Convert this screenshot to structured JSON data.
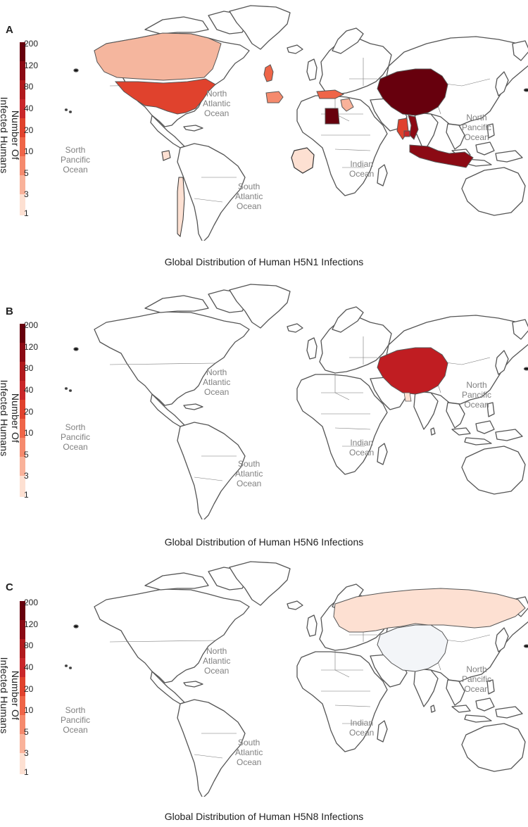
{
  "legend": {
    "title": "Number Of Infected Humans",
    "ticks": [
      "200",
      "120",
      "80",
      "40",
      "20",
      "10",
      "5",
      "3",
      "1"
    ],
    "colors": [
      "#67000d",
      "#8b0a14",
      "#b11a1d",
      "#c9272a",
      "#e0422d",
      "#ef6548",
      "#f58a6d",
      "#f9b29a",
      "#fde0d2"
    ]
  },
  "oceans": {
    "north_atlantic": [
      "North",
      "Atlantic",
      "Ocean"
    ],
    "south_pacific": [
      "Sorth",
      "Pancific",
      "Ocean"
    ],
    "south_atlantic": [
      "South",
      "Atlantic",
      "Ocean"
    ],
    "indian": [
      "Indian",
      "Ocean"
    ],
    "north_pacific": [
      "North",
      "Pancific",
      "Ocean"
    ]
  },
  "panels": [
    {
      "letter": "A",
      "caption": "Global Distribution of Human H5N1 Infections",
      "countries": [
        {
          "name": "China",
          "color": "#67000d"
        },
        {
          "name": "Egypt",
          "color": "#67000d"
        },
        {
          "name": "Indonesia",
          "color": "#8b0a14"
        },
        {
          "name": "Vietnam",
          "color": "#8b0a14"
        },
        {
          "name": "Cambodia",
          "color": "#c9272a"
        },
        {
          "name": "Thailand",
          "color": "#e0422d"
        },
        {
          "name": "United States",
          "color": "#e0422d"
        },
        {
          "name": "Turkey",
          "color": "#ef6548"
        },
        {
          "name": "United Kingdom",
          "color": "#ef6548"
        },
        {
          "name": "Spain",
          "color": "#f58a6d"
        },
        {
          "name": "Canada",
          "color": "#f5b69e"
        },
        {
          "name": "Iraq",
          "color": "#f9b29a"
        },
        {
          "name": "Chile",
          "color": "#fde0d2"
        },
        {
          "name": "Ecuador",
          "color": "#fde0d2"
        },
        {
          "name": "Democratic Republic of the Congo",
          "color": "#fde0d2"
        }
      ]
    },
    {
      "letter": "B",
      "caption": "Global Distribution of Human H5N6 Infections",
      "countries": [
        {
          "name": "China",
          "color": "#c01d22"
        },
        {
          "name": "Laos",
          "color": "#fde0d2"
        }
      ]
    },
    {
      "letter": "C",
      "caption": "Global Distribution of Human H5N8 Infections",
      "countries": [
        {
          "name": "Russia",
          "color": "#fde0d2"
        },
        {
          "name": "China",
          "color": "#f3f5f8"
        }
      ]
    }
  ]
}
